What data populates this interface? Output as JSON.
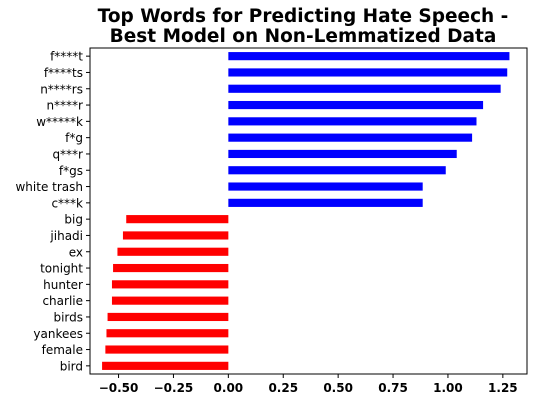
{
  "chart_data": {
    "type": "bar",
    "orientation": "horizontal",
    "title": "Top Words for Predicting Hate Speech -\nBest Model on Non-Lemmatized Data",
    "title_lines": [
      "Top Words for Predicting Hate Speech -",
      "Best Model on Non-Lemmatized Data"
    ],
    "xlabel": "",
    "ylabel": "",
    "xlim": [
      -0.63,
      1.36
    ],
    "xticks": [
      "−0.50",
      "−0.25",
      "0.00",
      "0.25",
      "0.50",
      "0.75",
      "1.00",
      "1.25"
    ],
    "xtick_values": [
      -0.5,
      -0.25,
      0.0,
      0.25,
      0.5,
      0.75,
      1.0,
      1.25
    ],
    "categories": [
      "f****t",
      "f****ts",
      "n****rs",
      "n****r",
      "w*****k",
      "f*g",
      "q***r",
      "f*gs",
      "white trash",
      "c***k",
      "big",
      "jihadi",
      "ex",
      "tonight",
      "hunter",
      "charlie",
      "birds",
      "yankees",
      "female",
      "bird"
    ],
    "values": [
      1.28,
      1.27,
      1.24,
      1.16,
      1.13,
      1.11,
      1.04,
      0.99,
      0.885,
      0.885,
      -0.465,
      -0.48,
      -0.505,
      -0.525,
      -0.53,
      -0.53,
      -0.55,
      -0.555,
      -0.56,
      -0.575
    ],
    "colors": {
      "positive": "#0000ff",
      "negative": "#ff0000"
    },
    "grid": false,
    "legend": "none"
  }
}
